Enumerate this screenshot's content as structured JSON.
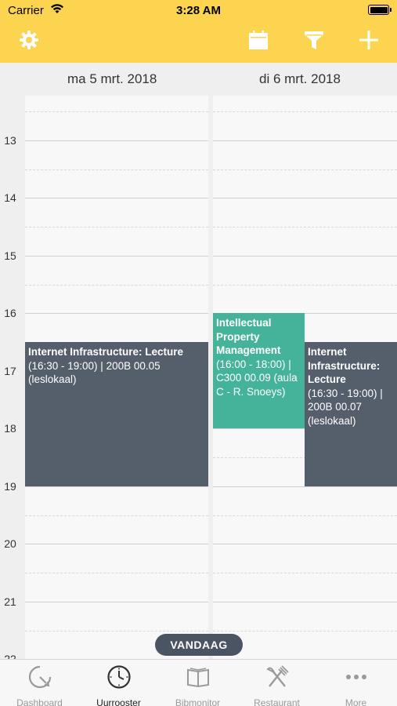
{
  "status_bar": {
    "carrier": "Carrier",
    "time": "3:28 AM"
  },
  "nav": {
    "color": "#fcd44f",
    "icons": [
      "gear-icon",
      "calendar-icon",
      "filter-icon",
      "plus-icon"
    ]
  },
  "days": [
    {
      "label": "ma 5 mrt. 2018"
    },
    {
      "label": "di 6 mrt. 2018"
    }
  ],
  "hours": [
    "13",
    "14",
    "15",
    "16",
    "17",
    "18",
    "19",
    "20",
    "21",
    "22"
  ],
  "events": [
    {
      "day": 0,
      "title": "Internet Infrastructure: Lecture",
      "details": "(16:30 - 19:00) | 200B 00.05 (leslokaal)",
      "color": "#555e6b"
    },
    {
      "day": 1,
      "title": "Intellectual Property Management",
      "details": "(16:00 - 18:00) | C300 00.09 (aula C - R. Snoeys)",
      "color": "#45b39a"
    },
    {
      "day": 1,
      "title": "Internet Infrastructure: Lecture",
      "details": "(16:30 - 19:00) | 200B 00.07 (leslokaal)",
      "color": "#555e6b"
    }
  ],
  "today_button": "VANDAAG",
  "tabs": [
    {
      "label": "Dashboard",
      "icon": "dashboard-icon"
    },
    {
      "label": "Uurrooster",
      "icon": "clock-icon",
      "active": true
    },
    {
      "label": "Bibmonitor",
      "icon": "book-icon"
    },
    {
      "label": "Restaurant",
      "icon": "fork-knife-icon"
    },
    {
      "label": "More",
      "icon": "more-icon"
    }
  ]
}
